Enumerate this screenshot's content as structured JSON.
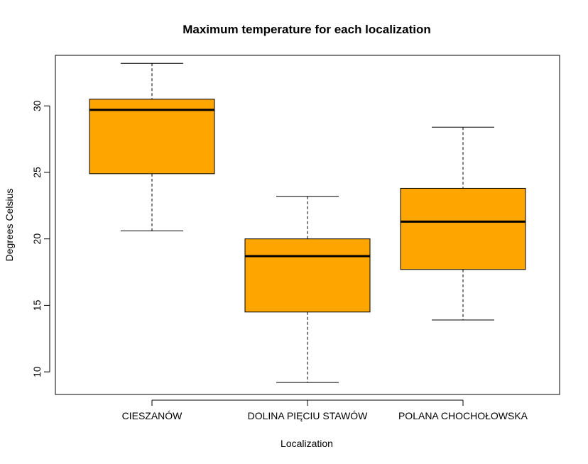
{
  "chart_data": {
    "type": "box",
    "title": "Maximum temperature for each localization",
    "xlabel": "Localization",
    "ylabel": "Degrees Celsius",
    "ylim": [
      8.3,
      33.8
    ],
    "yticks": [
      10,
      15,
      20,
      25,
      30
    ],
    "box_color": "#ffa500",
    "categories": [
      "CIESZANÓW",
      "DOLINA PIĘCIU STAWÓW",
      "POLANA CHOCHOŁOWSKA"
    ],
    "boxes": [
      {
        "category": "CIESZANÓW",
        "min": 20.6,
        "q1": 24.9,
        "median": 29.7,
        "q3": 30.5,
        "max": 33.2
      },
      {
        "category": "DOLINA PIĘCIU STAWÓW",
        "min": 9.2,
        "q1": 14.5,
        "median": 18.7,
        "q3": 20.0,
        "max": 23.2
      },
      {
        "category": "POLANA CHOCHOŁOWSKA",
        "min": 13.9,
        "q1": 17.7,
        "median": 21.3,
        "q3": 23.8,
        "max": 28.4
      }
    ]
  }
}
